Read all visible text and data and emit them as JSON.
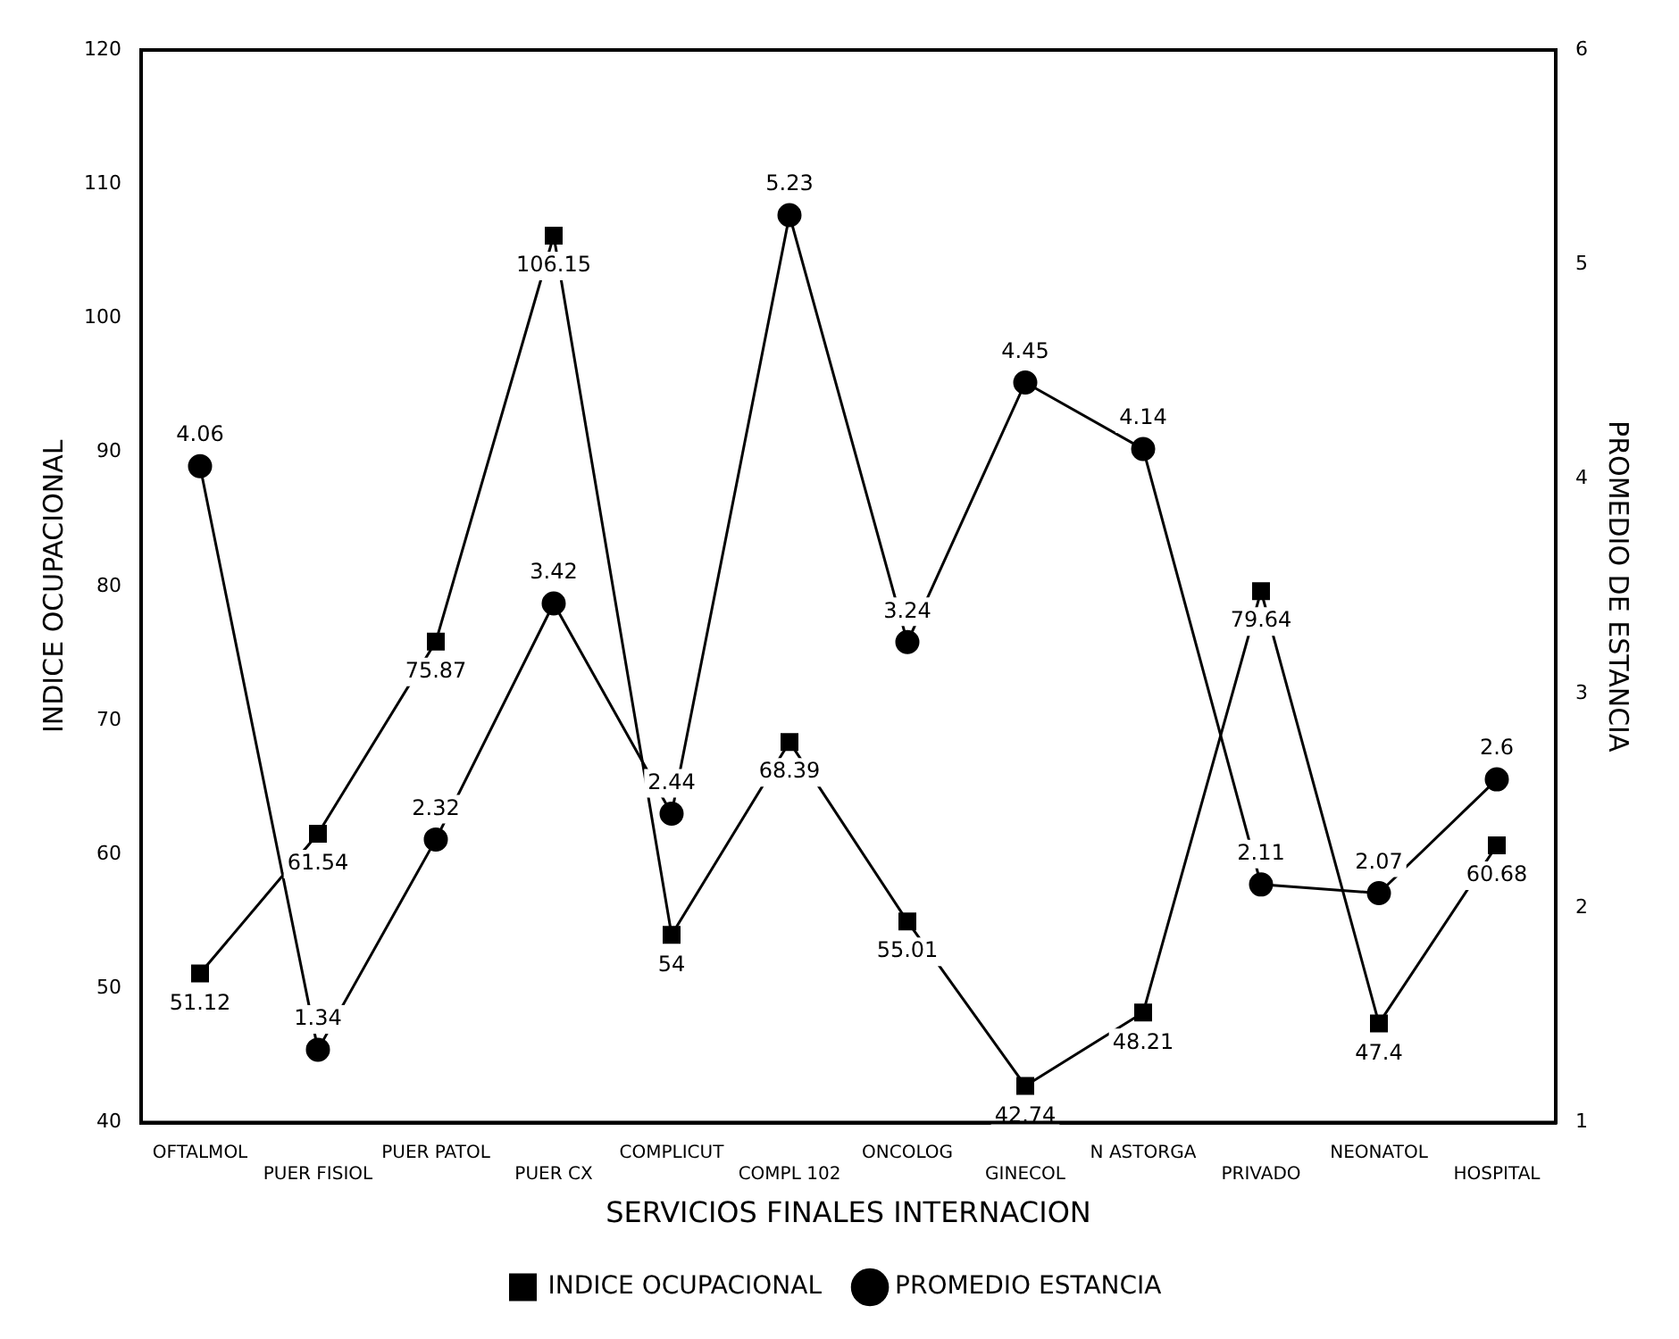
{
  "chart_data": {
    "type": "line",
    "xlabel": "SERVICIOS FINALES INTERNACION",
    "ylabel": "INDICE OCUPACIONAL",
    "y2label": "PROMEDIO DE ESTANCIA",
    "categories": [
      "OFTALMOL",
      "PUER FISIOL",
      "PUER PATOL",
      "PUER CX",
      "COMPLICUT",
      "COMPL 102",
      "ONCOLOG",
      "GINECOL",
      "N ASTORGA",
      "PRIVADO",
      "NEONATOL",
      "HOSPITAL"
    ],
    "series": [
      {
        "name": "INDICE OCUPACIONAL",
        "color": "#000000",
        "marker": "square",
        "values": [
          51.12,
          61.54,
          75.87,
          106.15,
          54,
          68.39,
          55.01,
          42.74,
          48.21,
          79.64,
          47.4,
          60.68
        ]
      },
      {
        "name": "PROMEDIO ESTANCIA",
        "color": "#000000",
        "marker": "circle",
        "axis": "y2",
        "values": [
          4.06,
          1.34,
          2.32,
          3.42,
          2.44,
          5.23,
          3.24,
          4.45,
          4.14,
          2.11,
          2.07,
          2.6
        ]
      }
    ],
    "ylim": [
      40,
      120
    ],
    "yticks": [
      40,
      50,
      60,
      70,
      80,
      90,
      100,
      110,
      120
    ],
    "y2lim": [
      1,
      6
    ],
    "y2ticks": [
      1,
      2,
      3,
      4,
      5,
      6
    ],
    "data_labels": true,
    "grid": false,
    "legend": "bottom",
    "line_style": "solid"
  }
}
